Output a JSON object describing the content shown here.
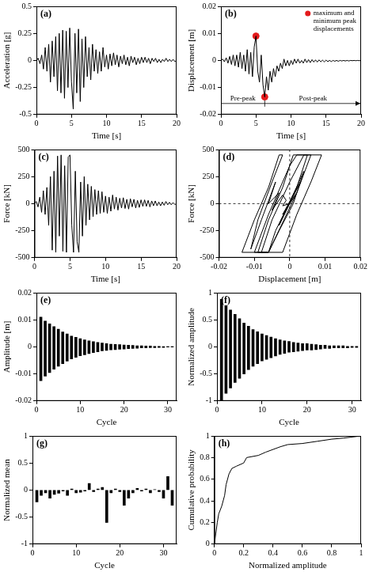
{
  "chart_data": [
    {
      "type": "line",
      "title": "(a)",
      "x_label": "Time [s]",
      "y_label": "Acceleration [g]",
      "xlim": [
        0,
        20
      ],
      "xticks": [
        0,
        5,
        10,
        15,
        20
      ],
      "ylim": [
        -0.5,
        0.5
      ],
      "yticks": [
        -0.5,
        -0.25,
        0,
        0.25,
        0.5
      ],
      "grid": false,
      "color": "#000000",
      "x": [
        0,
        0.25,
        0.5,
        0.75,
        1,
        1.25,
        1.5,
        1.75,
        2,
        2.25,
        2.5,
        2.75,
        3,
        3.25,
        3.5,
        3.75,
        4,
        4.25,
        4.5,
        4.75,
        5,
        5.25,
        5.5,
        5.75,
        6,
        6.25,
        6.5,
        6.75,
        7,
        7.25,
        7.5,
        7.75,
        8,
        8.25,
        8.5,
        8.75,
        9,
        9.25,
        9.5,
        9.75,
        10,
        10.25,
        10.5,
        10.75,
        11,
        11.25,
        11.5,
        11.75,
        12,
        12.25,
        12.5,
        12.75,
        13,
        13.25,
        13.5,
        13.75,
        14,
        14.25,
        14.5,
        14.75,
        15,
        15.25,
        15.5,
        15.75,
        16,
        16.25,
        16.5,
        16.75,
        17,
        17.25,
        17.5,
        17.75,
        18,
        18.25,
        18.5,
        18.75,
        19,
        19.25,
        19.5,
        19.75,
        20
      ],
      "values": [
        0,
        0.02,
        -0.03,
        0.05,
        -0.08,
        0.12,
        -0.1,
        0.15,
        -0.2,
        0.18,
        -0.15,
        0.22,
        -0.28,
        0.25,
        -0.3,
        0.28,
        -0.35,
        0.27,
        -0.25,
        0.3,
        -0.2,
        -0.45,
        0.25,
        -0.3,
        0.29,
        -0.38,
        0.2,
        -0.25,
        0.22,
        -0.15,
        0.12,
        -0.18,
        0.15,
        -0.1,
        0.1,
        -0.12,
        0.08,
        -0.1,
        0.12,
        -0.06,
        0.05,
        -0.08,
        0.06,
        -0.05,
        0.07,
        -0.04,
        0.05,
        -0.06,
        0.04,
        -0.03,
        0.05,
        -0.04,
        0.03,
        -0.05,
        0.04,
        -0.02,
        0.03,
        -0.04,
        0.02,
        -0.03,
        0.03,
        -0.02,
        0.03,
        -0.02,
        0.02,
        -0.03,
        0.02,
        -0.01,
        0.02,
        -0.02,
        0.01,
        -0.02,
        0.01,
        -0.01,
        0.02,
        -0.01,
        0.01,
        -0.01,
        0.01,
        -0.01,
        0
      ]
    },
    {
      "type": "line",
      "title": "(b)",
      "x_label": "Time [s]",
      "y_label": "Displacement [m]",
      "xlim": [
        0,
        20
      ],
      "xticks": [
        0,
        5,
        10,
        15,
        20
      ],
      "ylim": [
        -0.02,
        0.02
      ],
      "yticks": [
        -0.02,
        -0.01,
        0,
        0.01,
        0.02
      ],
      "grid": false,
      "color": "#000000",
      "x": [
        0,
        0.25,
        0.5,
        0.75,
        1,
        1.25,
        1.5,
        1.75,
        2,
        2.25,
        2.5,
        2.75,
        3,
        3.25,
        3.5,
        3.75,
        4,
        4.25,
        4.5,
        4.75,
        5,
        5.25,
        5.5,
        5.75,
        6,
        6.25,
        6.5,
        6.75,
        7,
        7.25,
        7.5,
        7.75,
        8,
        8.25,
        8.5,
        8.75,
        9,
        9.25,
        9.5,
        9.75,
        10,
        10.25,
        10.5,
        10.75,
        11,
        11.25,
        11.5,
        11.75,
        12,
        12.25,
        12.5,
        12.75,
        13,
        13.25,
        13.5,
        13.75,
        14,
        14.25,
        14.5,
        14.75,
        15,
        15.25,
        15.5,
        15.75,
        16,
        16.25,
        16.5,
        16.75,
        17,
        17.25,
        17.5,
        17.75,
        18,
        18.25,
        18.5,
        18.75,
        19,
        19.25,
        19.5,
        19.75,
        20
      ],
      "values": [
        0,
        0.0005,
        -0.0005,
        0.001,
        -0.001,
        0.0015,
        -0.0015,
        0.002,
        -0.002,
        0.002,
        -0.0025,
        0.003,
        -0.003,
        0.002,
        -0.004,
        0.004,
        -0.005,
        0.003,
        -0.006,
        0.005,
        0.009,
        -0.004,
        -0.008,
        0.002,
        -0.009,
        -0.0135,
        -0.006,
        -0.011,
        -0.004,
        -0.008,
        -0.003,
        -0.006,
        -0.002,
        -0.004,
        -0.001,
        -0.003,
        0.0005,
        -0.002,
        0,
        -0.002,
        0,
        -0.0015,
        0.0005,
        -0.001,
        0.0005,
        -0.001,
        0,
        -0.001,
        0.0005,
        -0.0008,
        0.0003,
        -0.0008,
        0.0003,
        -0.0006,
        0.0002,
        -0.0006,
        0.0002,
        -0.0005,
        0.0001,
        -0.0005,
        0.0001,
        -0.0004,
        0,
        -0.0004,
        0,
        -0.0003,
        0,
        -0.0003,
        0,
        -0.0002,
        0,
        -0.0002,
        0,
        -0.0002,
        0,
        -0.0001,
        0,
        -0.0001,
        0,
        -0.0001,
        0
      ],
      "series": [
        {
          "name": "maximum and minimum peak displacements",
          "type": "scatter",
          "marker": "circle",
          "color": "#e41a1c",
          "x": [
            5,
            6.25
          ],
          "values": [
            0.009,
            -0.0135
          ]
        }
      ],
      "legend": "upper right",
      "annotations": [
        "Pre-peak",
        "Post-peak"
      ]
    },
    {
      "type": "line",
      "title": "(c)",
      "x_label": "Time [s]",
      "y_label": "Force [kN]",
      "xlim": [
        0,
        20
      ],
      "xticks": [
        0,
        5,
        10,
        15,
        20
      ],
      "ylim": [
        -500,
        500
      ],
      "yticks": [
        -500,
        -250,
        0,
        250,
        500
      ],
      "grid": false,
      "color": "#000000",
      "x": [
        0,
        0.25,
        0.5,
        0.75,
        1,
        1.25,
        1.5,
        1.75,
        2,
        2.25,
        2.5,
        2.75,
        3,
        3.25,
        3.5,
        3.75,
        4,
        4.25,
        4.5,
        4.75,
        5,
        5.25,
        5.5,
        5.75,
        6,
        6.25,
        6.5,
        6.75,
        7,
        7.25,
        7.5,
        7.75,
        8,
        8.25,
        8.5,
        8.75,
        9,
        9.25,
        9.5,
        9.75,
        10,
        10.25,
        10.5,
        10.75,
        11,
        11.25,
        11.5,
        11.75,
        12,
        12.25,
        12.5,
        12.75,
        13,
        13.25,
        13.5,
        13.75,
        14,
        14.25,
        14.5,
        14.75,
        15,
        15.25,
        15.5,
        15.75,
        16,
        16.25,
        16.5,
        16.75,
        17,
        17.25,
        17.5,
        17.75,
        18,
        18.25,
        18.5,
        18.75,
        19,
        19.25,
        19.5,
        19.75,
        20
      ],
      "values": [
        0,
        20,
        -30,
        60,
        -80,
        120,
        -100,
        150,
        -200,
        250,
        -430,
        300,
        -450,
        440,
        -300,
        450,
        -440,
        350,
        -450,
        430,
        450,
        -200,
        -450,
        300,
        -350,
        -450,
        200,
        -300,
        250,
        -200,
        180,
        -150,
        160,
        -120,
        130,
        -100,
        120,
        -90,
        110,
        -80,
        70,
        -90,
        60,
        -70,
        80,
        -50,
        60,
        -60,
        50,
        -40,
        55,
        -45,
        40,
        -50,
        45,
        -30,
        40,
        -40,
        30,
        -35,
        35,
        -25,
        35,
        -25,
        30,
        -30,
        25,
        -20,
        25,
        -20,
        15,
        -20,
        15,
        -15,
        20,
        -10,
        12,
        -10,
        10,
        -8,
        0
      ]
    },
    {
      "type": "line",
      "title": "(d)",
      "x_label": "Displacement [m]",
      "y_label": "Force [kN]",
      "xlim": [
        -0.02,
        0.02
      ],
      "xticks": [
        -0.02,
        -0.01,
        0,
        0.01,
        0.02
      ],
      "ylim": [
        -500,
        500
      ],
      "yticks": [
        -500,
        -250,
        0,
        250,
        500
      ],
      "grid": false,
      "color": "#000000",
      "x": [
        0,
        0.002,
        -0.002,
        0.003,
        -0.003,
        0.004,
        0.001,
        -0.003,
        -0.006,
        -0.009,
        -0.006,
        -0.002,
        0.001,
        0.005,
        0.002,
        -0.004,
        -0.006,
        -0.01,
        -0.006,
        0,
        0.002,
        0.009,
        0.006,
        0.002,
        -0.002,
        -0.008,
        -0.005,
        0,
        0.004,
        0.006,
        0.002,
        -0.006,
        -0.0135,
        -0.01,
        -0.006,
        -0.003,
        -0.002,
        -0.005,
        -0.009,
        -0.011,
        -0.008,
        -0.004,
        -0.006,
        -0.003,
        -0.005,
        -0.002,
        -0.001,
        -0.002,
        0
      ],
      "values": [
        0,
        100,
        -100,
        200,
        -200,
        300,
        0,
        -250,
        -450,
        -450,
        -150,
        150,
        450,
        450,
        150,
        -250,
        -450,
        -450,
        -100,
        350,
        450,
        450,
        200,
        -100,
        -450,
        -450,
        -150,
        200,
        450,
        450,
        100,
        -450,
        -450,
        -150,
        150,
        450,
        450,
        200,
        -150,
        -420,
        -150,
        200,
        0,
        100,
        -60,
        80,
        30,
        -20,
        0
      ]
    },
    {
      "type": "bar",
      "title": "(e)",
      "x_label": "Cycle",
      "y_label": "Amplitude [m]",
      "xlim": [
        0,
        32
      ],
      "xticks": [
        0,
        10,
        20,
        30
      ],
      "ylim": [
        -0.02,
        0.02
      ],
      "yticks": [
        -0.02,
        -0.01,
        0,
        0.01,
        0.02
      ],
      "grid": false,
      "color": "#000000",
      "x": [
        1,
        2,
        3,
        4,
        5,
        6,
        7,
        8,
        9,
        10,
        11,
        12,
        13,
        14,
        15,
        16,
        17,
        18,
        19,
        20,
        21,
        22,
        23,
        24,
        25,
        26,
        27,
        28,
        29,
        30,
        31
      ],
      "values": [
        [
          -0.0125,
          0.011
        ],
        [
          -0.0108,
          0.0095
        ],
        [
          -0.0095,
          0.0085
        ],
        [
          -0.0083,
          0.0075
        ],
        [
          -0.0072,
          0.0065
        ],
        [
          -0.0062,
          0.0055
        ],
        [
          -0.0053,
          0.0048
        ],
        [
          -0.0045,
          0.004
        ],
        [
          -0.0039,
          0.0035
        ],
        [
          -0.0033,
          0.003
        ],
        [
          -0.0029,
          0.0026
        ],
        [
          -0.0025,
          0.0022
        ],
        [
          -0.0021,
          0.0019
        ],
        [
          -0.0018,
          0.0016
        ],
        [
          -0.0015,
          0.0014
        ],
        [
          -0.0013,
          0.0012
        ],
        [
          -0.0011,
          0.001
        ],
        [
          -0.001,
          0.0009
        ],
        [
          -0.0009,
          0.0008
        ],
        [
          -0.0008,
          0.0007
        ],
        [
          -0.0007,
          0.0006
        ],
        [
          -0.0006,
          0.0005
        ],
        [
          -0.0005,
          0.0004
        ],
        [
          -0.0004,
          0.0004
        ],
        [
          -0.0004,
          0.0003
        ],
        [
          -0.0003,
          0.0003
        ],
        [
          -0.0003,
          0.0002
        ],
        [
          -0.0002,
          0.0002
        ],
        [
          -0.0002,
          0.0001
        ],
        [
          -0.0001,
          0.0001
        ],
        [
          -0.0001,
          0.0001
        ]
      ]
    },
    {
      "type": "bar",
      "title": "(f)",
      "x_label": "Cycle",
      "y_label": "Normalized amplitude",
      "xlim": [
        0,
        32
      ],
      "xticks": [
        0,
        10,
        20,
        30
      ],
      "ylim": [
        -1,
        1
      ],
      "yticks": [
        -1,
        -0.5,
        0,
        0.5,
        1
      ],
      "grid": false,
      "color": "#000000",
      "x": [
        1,
        2,
        3,
        4,
        5,
        6,
        7,
        8,
        9,
        10,
        11,
        12,
        13,
        14,
        15,
        16,
        17,
        18,
        19,
        20,
        21,
        22,
        23,
        24,
        25,
        26,
        27,
        28,
        29,
        30,
        31
      ],
      "values": [
        [
          -1,
          0.88
        ],
        [
          -0.86,
          0.76
        ],
        [
          -0.76,
          0.68
        ],
        [
          -0.66,
          0.6
        ],
        [
          -0.58,
          0.52
        ],
        [
          -0.5,
          0.44
        ],
        [
          -0.42,
          0.38
        ],
        [
          -0.36,
          0.32
        ],
        [
          -0.31,
          0.28
        ],
        [
          -0.26,
          0.24
        ],
        [
          -0.23,
          0.21
        ],
        [
          -0.2,
          0.18
        ],
        [
          -0.17,
          0.15
        ],
        [
          -0.14,
          0.13
        ],
        [
          -0.12,
          0.11
        ],
        [
          -0.1,
          0.1
        ],
        [
          -0.09,
          0.08
        ],
        [
          -0.08,
          0.07
        ],
        [
          -0.07,
          0.06
        ],
        [
          -0.06,
          0.06
        ],
        [
          -0.06,
          0.05
        ],
        [
          -0.05,
          0.04
        ],
        [
          -0.04,
          0.03
        ],
        [
          -0.03,
          0.03
        ],
        [
          -0.03,
          0.02
        ],
        [
          -0.02,
          0.02
        ],
        [
          -0.02,
          0.02
        ],
        [
          -0.02,
          0.02
        ],
        [
          -0.02,
          0.01
        ],
        [
          -0.01,
          0.01
        ],
        [
          -0.01,
          0.01
        ]
      ]
    },
    {
      "type": "bar",
      "title": "(g)",
      "x_label": "Cycle",
      "y_label": "Normalized mean",
      "xlim": [
        0,
        33
      ],
      "xticks": [
        0,
        10,
        20,
        30
      ],
      "ylim": [
        -1,
        1
      ],
      "yticks": [
        -1,
        -0.5,
        0,
        0.5,
        1
      ],
      "grid": false,
      "color": "#000000",
      "x": [
        1,
        2,
        3,
        4,
        5,
        6,
        7,
        8,
        9,
        10,
        11,
        12,
        13,
        14,
        15,
        16,
        17,
        18,
        19,
        20,
        21,
        22,
        23,
        24,
        25,
        26,
        27,
        28,
        29,
        30,
        31,
        32
      ],
      "values": [
        -0.22,
        -0.1,
        -0.05,
        -0.15,
        -0.08,
        -0.06,
        -0.02,
        -0.1,
        0.02,
        -0.05,
        -0.04,
        -0.02,
        0.12,
        -0.03,
        0.02,
        0.05,
        -0.6,
        -0.05,
        0.02,
        -0.03,
        -0.28,
        -0.15,
        -0.05,
        0.03,
        -0.02,
        0.02,
        -0.05,
        0.01,
        -0.03,
        -0.15,
        0.25,
        -0.28
      ]
    },
    {
      "type": "line",
      "title": "(h)",
      "x_label": "Normalized amplitude",
      "y_label": "Cumulative probability",
      "xlim": [
        0,
        1
      ],
      "xticks": [
        0,
        0.2,
        0.4,
        0.6,
        0.8,
        1
      ],
      "ylim": [
        0,
        1
      ],
      "yticks": [
        0,
        0.2,
        0.4,
        0.6,
        0.8,
        1
      ],
      "grid": false,
      "color": "#000000",
      "x": [
        0,
        0.01,
        0.02,
        0.03,
        0.05,
        0.07,
        0.08,
        0.1,
        0.12,
        0.15,
        0.2,
        0.22,
        0.3,
        0.35,
        0.45,
        0.5,
        0.6,
        0.7,
        0.8,
        0.88,
        1
      ],
      "values": [
        0,
        0.1,
        0.2,
        0.28,
        0.35,
        0.45,
        0.55,
        0.65,
        0.7,
        0.72,
        0.75,
        0.8,
        0.82,
        0.85,
        0.9,
        0.92,
        0.93,
        0.95,
        0.97,
        0.98,
        1
      ]
    }
  ]
}
